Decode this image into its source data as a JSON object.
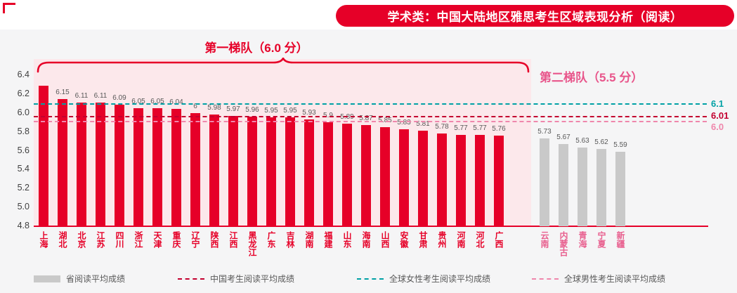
{
  "banner": {
    "title": "学术类：中国大陆地区雅思考生区域表现分析（阅读）"
  },
  "annotations": {
    "tier1": "第一梯队（6.0 分）",
    "tier2": "第二梯队（5.5 分）"
  },
  "chart_data": {
    "type": "bar",
    "title": "学术类：中国大陆地区雅思考生区域表现分析（阅读）",
    "ylim": [
      4.8,
      6.4
    ],
    "yticks": [
      6.4,
      6.2,
      6.0,
      5.8,
      5.6,
      5.4,
      5.2,
      5.0,
      4.8
    ],
    "grid": false,
    "legend_position": "bottom",
    "series": [
      {
        "name": "第一梯队省份（6.0 分）",
        "color": "#e60028",
        "label_color": "#e60028",
        "points": [
          {
            "region": "上海",
            "value": 6.29,
            "label": ""
          },
          {
            "region": "湖北",
            "value": 6.15,
            "label": "6.15"
          },
          {
            "region": "北京",
            "value": 6.11,
            "label": "6.11"
          },
          {
            "region": "江苏",
            "value": 6.11,
            "label": "6.11"
          },
          {
            "region": "四川",
            "value": 6.09,
            "label": "6.09"
          },
          {
            "region": "浙江",
            "value": 6.05,
            "label": "6.05"
          },
          {
            "region": "天津",
            "value": 6.05,
            "label": "6.05"
          },
          {
            "region": "重庆",
            "value": 6.04,
            "label": "6.04"
          },
          {
            "region": "辽宁",
            "value": 6.0,
            "label": "6"
          },
          {
            "region": "陕西",
            "value": 5.98,
            "label": "5.98"
          },
          {
            "region": "江西",
            "value": 5.97,
            "label": "5.97"
          },
          {
            "region": "黑龙江",
            "value": 5.96,
            "label": "5.96"
          },
          {
            "region": "广东",
            "value": 5.95,
            "label": "5.95"
          },
          {
            "region": "吉林",
            "value": 5.95,
            "label": "5.95"
          },
          {
            "region": "湖南",
            "value": 5.93,
            "label": "5.93"
          },
          {
            "region": "福建",
            "value": 5.9,
            "label": "5.9"
          },
          {
            "region": "山东",
            "value": 5.89,
            "label": "5.89"
          },
          {
            "region": "海南",
            "value": 5.87,
            "label": "5.87"
          },
          {
            "region": "山西",
            "value": 5.85,
            "label": "5.85"
          },
          {
            "region": "安徽",
            "value": 5.83,
            "label": "5.83"
          },
          {
            "region": "甘肃",
            "value": 5.81,
            "label": "5.81"
          },
          {
            "region": "贵州",
            "value": 5.78,
            "label": "5.78"
          },
          {
            "region": "河南",
            "value": 5.77,
            "label": "5.77"
          },
          {
            "region": "河北",
            "value": 5.77,
            "label": "5.77"
          },
          {
            "region": "广西",
            "value": 5.76,
            "label": "5.76"
          }
        ]
      },
      {
        "name": "第二梯队省份（5.5 分）",
        "color": "#c9c9c9",
        "label_color": "#e8608f",
        "points": [
          {
            "region": "云南",
            "value": 5.73,
            "label": "5.73"
          },
          {
            "region": "内蒙古",
            "value": 5.67,
            "label": "5.67"
          },
          {
            "region": "青海",
            "value": 5.63,
            "label": "5.63"
          },
          {
            "region": "宁夏",
            "value": 5.62,
            "label": "5.62"
          },
          {
            "region": "新疆",
            "value": 5.59,
            "label": "5.59"
          }
        ]
      }
    ],
    "reference_lines": [
      {
        "name": "全球女性考生阅读平均成绩",
        "value": 6.1,
        "label": "6.1",
        "color": "#00a1a5"
      },
      {
        "name": "中国考生阅读平均成绩",
        "value": 6.01,
        "label": "6.01",
        "color": "#c3002f"
      },
      {
        "name": "全球男性考生阅读平均成绩",
        "value": 6.0,
        "label": "6.0",
        "color": "#ef87ac"
      }
    ]
  },
  "legend": [
    {
      "label": "省阅读平均成绩",
      "swatch": "bar",
      "color": "#c9c9c9"
    },
    {
      "label": "中国考生阅读平均成绩",
      "swatch": "dash",
      "color": "#c3002f"
    },
    {
      "label": "全球女性考生阅读平均成绩",
      "swatch": "dash",
      "color": "#00a1a5"
    },
    {
      "label": "全球男性考生阅读平均成绩",
      "swatch": "dash",
      "color": "#ef87ac"
    }
  ]
}
